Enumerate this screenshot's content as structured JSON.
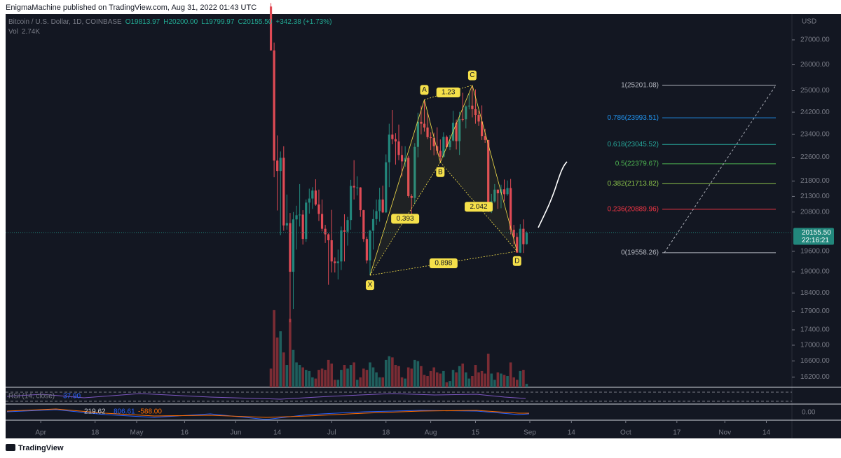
{
  "header": {
    "publisher": "EnigmaMachine published on TradingView.com, Aug 31, 2022 01:43 UTC"
  },
  "footer": {
    "brand": "TradingView"
  },
  "chart_data": {
    "type": "candlestick",
    "symbol": "Bitcoin / U.S. Dollar, 1D, COINBASE",
    "ohlc_labels": [
      "O19813.97",
      "H20200.00",
      "L19799.97",
      "C20155.50"
    ],
    "change": "+342.38 (+1.73%)",
    "volume_label": "Vol",
    "volume_value": "2.74K",
    "currency": "USD",
    "log_scale": true,
    "colors": {
      "up": "#22877c",
      "down": "#e04a55",
      "up_volume": "#1f5f5d",
      "down_volume": "#7b2c34",
      "pattern": "#f5e04a"
    },
    "x": [
      "06-12",
      "06-13",
      "06-14",
      "06-15",
      "06-16",
      "06-17",
      "06-18",
      "06-19",
      "06-20",
      "06-21",
      "06-22",
      "06-23",
      "06-24",
      "06-25",
      "06-26",
      "06-27",
      "06-28",
      "06-29",
      "06-30",
      "07-01",
      "07-02",
      "07-03",
      "07-04",
      "07-05",
      "07-06",
      "07-07",
      "07-08",
      "07-09",
      "07-10",
      "07-11",
      "07-12",
      "07-13",
      "07-14",
      "07-15",
      "07-16",
      "07-17",
      "07-18",
      "07-19",
      "07-20",
      "07-21",
      "07-22",
      "07-23",
      "07-24",
      "07-25",
      "07-26",
      "07-27",
      "07-28",
      "07-29",
      "07-30",
      "07-31",
      "08-01",
      "08-02",
      "08-03",
      "08-04",
      "08-05",
      "08-06",
      "08-07",
      "08-08",
      "08-09",
      "08-10",
      "08-11",
      "08-12",
      "08-13",
      "08-14",
      "08-15",
      "08-16",
      "08-17",
      "08-18",
      "08-19",
      "08-20",
      "08-21",
      "08-22",
      "08-23",
      "08-24",
      "08-25",
      "08-26",
      "08-27",
      "08-28",
      "08-29",
      "08-30",
      "08-31"
    ],
    "series": [
      {
        "name": "Bitcoin / U.S. Dollar",
        "values": [
          [
            28400,
            28550,
            26560,
            26570
          ],
          [
            26570,
            26890,
            21925,
            22487
          ],
          [
            22487,
            23360,
            20850,
            22136
          ],
          [
            22136,
            22800,
            20080,
            22583
          ],
          [
            22583,
            22980,
            20220,
            20381
          ],
          [
            20381,
            21360,
            20250,
            20455
          ],
          [
            20455,
            20770,
            17600,
            19000
          ],
          [
            19000,
            20800,
            17960,
            20570
          ],
          [
            20570,
            21000,
            19650,
            20700
          ],
          [
            20700,
            21700,
            20350,
            20720
          ],
          [
            20720,
            20860,
            19800,
            19970
          ],
          [
            19970,
            21200,
            19880,
            21100
          ],
          [
            21100,
            21550,
            20750,
            21230
          ],
          [
            21230,
            21600,
            20900,
            21490
          ],
          [
            21490,
            21860,
            21000,
            21040
          ],
          [
            21040,
            21520,
            20520,
            20740
          ],
          [
            20740,
            21200,
            20200,
            20280
          ],
          [
            20280,
            20400,
            19850,
            20110
          ],
          [
            20110,
            20140,
            18630,
            19930
          ],
          [
            19930,
            20870,
            18980,
            19300
          ],
          [
            19300,
            19420,
            18980,
            19250
          ],
          [
            19250,
            19650,
            18780,
            19300
          ],
          [
            19300,
            20350,
            19050,
            20230
          ],
          [
            20230,
            20730,
            19300,
            20190
          ],
          [
            20190,
            20650,
            19770,
            20550
          ],
          [
            20550,
            21840,
            20250,
            21640
          ],
          [
            21640,
            22500,
            21200,
            21590
          ],
          [
            21590,
            21960,
            21330,
            21590
          ],
          [
            21590,
            21600,
            20650,
            20860
          ],
          [
            20860,
            20870,
            19880,
            19970
          ],
          [
            19970,
            20040,
            19240,
            19330
          ],
          [
            19330,
            20250,
            18900,
            20220
          ],
          [
            20220,
            20880,
            19650,
            20580
          ],
          [
            20580,
            21200,
            20400,
            20830
          ],
          [
            20830,
            21580,
            20500,
            21200
          ],
          [
            21200,
            21650,
            20770,
            20790
          ],
          [
            20790,
            22700,
            20770,
            22430
          ],
          [
            22430,
            23780,
            21600,
            23390
          ],
          [
            23390,
            24280,
            23050,
            23230
          ],
          [
            23230,
            23440,
            22350,
            23150
          ],
          [
            23150,
            23750,
            22500,
            22680
          ],
          [
            22680,
            22990,
            21950,
            22460
          ],
          [
            22460,
            22980,
            22280,
            22580
          ],
          [
            22580,
            22650,
            21260,
            21310
          ],
          [
            21310,
            21370,
            20720,
            21250
          ],
          [
            21250,
            23090,
            21050,
            22960
          ],
          [
            22960,
            24180,
            22600,
            23850
          ],
          [
            23850,
            24440,
            23400,
            23780
          ],
          [
            23780,
            24660,
            23500,
            23640
          ],
          [
            23640,
            24200,
            23230,
            23300
          ],
          [
            23300,
            23470,
            22850,
            23270
          ],
          [
            23270,
            23460,
            22670,
            22980
          ],
          [
            22980,
            23650,
            22690,
            22820
          ],
          [
            22820,
            23220,
            22430,
            22620
          ],
          [
            22620,
            23470,
            22590,
            23310
          ],
          [
            23310,
            23360,
            22920,
            22950
          ],
          [
            22950,
            23370,
            22850,
            23180
          ],
          [
            23180,
            24250,
            23150,
            23810
          ],
          [
            23810,
            23930,
            22870,
            23160
          ],
          [
            23160,
            24210,
            22680,
            23950
          ],
          [
            23950,
            24920,
            23860,
            23940
          ],
          [
            23940,
            24450,
            23610,
            24410
          ],
          [
            24410,
            24900,
            24300,
            24440
          ],
          [
            24440,
            25210,
            24010,
            24310
          ],
          [
            24310,
            25050,
            23780,
            24100
          ],
          [
            24100,
            24250,
            23700,
            23860
          ],
          [
            23860,
            24450,
            23200,
            23340
          ],
          [
            23340,
            23600,
            23100,
            23200
          ],
          [
            23200,
            23200,
            20800,
            20830
          ],
          [
            20830,
            21380,
            20770,
            21140
          ],
          [
            21140,
            21700,
            21100,
            21520
          ],
          [
            21520,
            21520,
            20900,
            21400
          ],
          [
            21400,
            21680,
            20920,
            21530
          ],
          [
            21530,
            21850,
            21140,
            21370
          ],
          [
            21370,
            21820,
            21320,
            21570
          ],
          [
            21570,
            21870,
            20110,
            20250
          ],
          [
            20250,
            20400,
            19810,
            20030
          ],
          [
            20030,
            20150,
            19600,
            19560
          ],
          [
            19560,
            20420,
            19550,
            20280
          ],
          [
            20280,
            20570,
            19550,
            19810
          ],
          [
            19813.97,
            20200,
            19799.97,
            20155.5
          ]
        ]
      },
      {
        "name": "Vol",
        "axis": "y2",
        "values": [
          15,
          62,
          40,
          45,
          28,
          18,
          55,
          30,
          20,
          18,
          16,
          14,
          13,
          8,
          7,
          14,
          15,
          14,
          22,
          19,
          6,
          6,
          14,
          18,
          15,
          18,
          20,
          6,
          8,
          15,
          14,
          20,
          16,
          12,
          8,
          8,
          22,
          25,
          24,
          18,
          17,
          8,
          7,
          16,
          15,
          22,
          21,
          17,
          10,
          9,
          13,
          16,
          12,
          11,
          13,
          4,
          5,
          14,
          12,
          17,
          19,
          12,
          7,
          9,
          18,
          12,
          13,
          11,
          27,
          11,
          6,
          12,
          11,
          10,
          9,
          20,
          8,
          6,
          13,
          14,
          2.74
        ]
      }
    ],
    "ylim": [
      15950,
      28080
    ],
    "y2lim": [
      0,
      300
    ],
    "yticks": [
      {
        "value": 27000,
        "label": "27000.00"
      },
      {
        "value": 26000,
        "label": "26000.00"
      },
      {
        "value": 25000,
        "label": "25000.00"
      },
      {
        "value": 24200,
        "label": "24200.00"
      },
      {
        "value": 23400,
        "label": "23400.00"
      },
      {
        "value": 22600,
        "label": "22600.00"
      },
      {
        "value": 21800,
        "label": "21800.00"
      },
      {
        "value": 21300,
        "label": "21300.00"
      },
      {
        "value": 20800,
        "label": "20800.00"
      },
      {
        "value": 19600,
        "label": "19600.00"
      },
      {
        "value": 19000,
        "label": "19000.00"
      },
      {
        "value": 18400,
        "label": "18400.00"
      },
      {
        "value": 17900,
        "label": "17900.00"
      },
      {
        "value": 17400,
        "label": "17400.00"
      },
      {
        "value": 17000,
        "label": "17000.00"
      },
      {
        "value": 16600,
        "label": "16600.00"
      },
      {
        "value": 16200,
        "label": "16200.00"
      }
    ],
    "xlim": [
      "03-21",
      "11-22"
    ],
    "xticks": [
      {
        "value": "04-01",
        "label": "Apr"
      },
      {
        "value": "04-18",
        "label": "18"
      },
      {
        "value": "05-01",
        "label": "May"
      },
      {
        "value": "05-16",
        "label": "16"
      },
      {
        "value": "06-01",
        "label": "Jun"
      },
      {
        "value": "06-14",
        "label": "14"
      },
      {
        "value": "07-01",
        "label": "Jul"
      },
      {
        "value": "07-18",
        "label": "18"
      },
      {
        "value": "08-01",
        "label": "Aug"
      },
      {
        "value": "08-15",
        "label": "15"
      },
      {
        "value": "09-01",
        "label": "Sep"
      },
      {
        "value": "09-14",
        "label": "14"
      },
      {
        "value": "10-01",
        "label": "Oct"
      },
      {
        "value": "10-17",
        "label": "17"
      },
      {
        "value": "11-01",
        "label": "Nov"
      },
      {
        "value": "11-14",
        "label": "14"
      }
    ],
    "last_price": {
      "value": 20155.5,
      "label": "20155.50"
    },
    "countdown": "22:16:21",
    "fib_levels": [
      {
        "label": "1(25201.08)",
        "value": 25201.08,
        "color": "#b2b5be"
      },
      {
        "label": "0.786(23993.51)",
        "value": 23993.51,
        "color": "#2196f3"
      },
      {
        "label": "0.618(23045.52)",
        "value": 23045.52,
        "color": "#26a69a"
      },
      {
        "label": "0.5(22379.67)",
        "value": 22379.67,
        "color": "#4caf50"
      },
      {
        "label": "0.382(21713.82)",
        "value": 21713.82,
        "color": "#8bc34a"
      },
      {
        "label": "0.236(20889.96)",
        "value": 20889.96,
        "color": "#f23645"
      },
      {
        "label": "0(19558.26)",
        "value": 19558.26,
        "color": "#b2b5be"
      }
    ],
    "pattern_points": [
      {
        "label": "X",
        "x": "07-13",
        "value": 18900
      },
      {
        "label": "A",
        "x": "07-30",
        "value": 24660
      },
      {
        "label": "B",
        "x": "08-04",
        "value": 22430
      },
      {
        "label": "C",
        "x": "08-14",
        "value": 25210
      },
      {
        "label": "D",
        "x": "08-28",
        "value": 19600
      }
    ],
    "pattern_ratios": [
      "0.393",
      "1.23",
      "2.042",
      "0.898"
    ],
    "rsi": {
      "label": "RSI (14, close)",
      "value": "37.90"
    },
    "macd": {
      "values": [
        "219.62",
        "806.61",
        "-588.00"
      ],
      "zero": "0.00"
    }
  }
}
